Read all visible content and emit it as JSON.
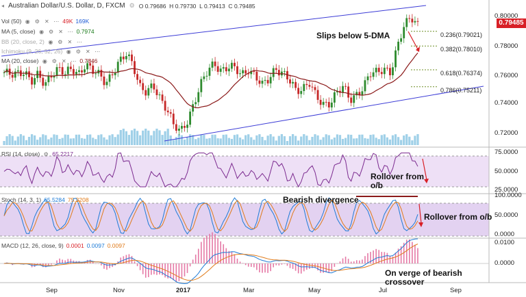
{
  "header": {
    "symbol_title": "Australian Dollar/U.S. Dollar, D, FXCM",
    "ohlc": {
      "o_label": "O",
      "o": "0.79686",
      "h_label": "H",
      "h": "0.79730",
      "l_label": "L",
      "l": "0.79413",
      "c_label": "C",
      "c": "0.79485"
    }
  },
  "indicators": [
    {
      "label": "Vol (50)",
      "v1": "49K",
      "v2": "169K",
      "c1": "#d81f26",
      "c2": "#1e5bd6"
    },
    {
      "label": "MA (5, close)",
      "v1": "0.7974",
      "v2": "",
      "c1": "#1a7a1a",
      "c2": ""
    },
    {
      "label": "BB (20, close, 2)",
      "v1": "",
      "v2": "",
      "c1": "",
      "c2": ""
    },
    {
      "label": "Ichimoku (9, 26, 52, 26)",
      "v1": "",
      "v2": "",
      "c1": "",
      "c2": ""
    },
    {
      "label": "MA (20, close)",
      "v1": "0.7846",
      "v2": "",
      "c1": "#8b1a1a",
      "c2": ""
    }
  ],
  "price": {
    "current": "0.79485",
    "y_ticks": [
      "0.80000",
      "0.78000",
      "0.76000",
      "0.74000",
      "0.72000"
    ],
    "fib": [
      {
        "label": "0.236(0.79021)",
        "level": 0.79021
      },
      {
        "label": "0.382(0.78010)",
        "level": 0.7801
      },
      {
        "label": "0.618(0.76374)",
        "level": 0.76374
      },
      {
        "label": "0.786(0.75211)",
        "level": 0.75211
      }
    ]
  },
  "rsi": {
    "label": "RSI (14, close)",
    "value": "65.2217",
    "y_ticks": [
      "75.0000",
      "50.0000",
      "25.0000"
    ]
  },
  "stoch": {
    "label": "Stoch (14, 3, 1)",
    "k": "65.5284",
    "d": "75.3208",
    "y_ticks": [
      "100.0000",
      "50.0000",
      "0.0000"
    ]
  },
  "macd": {
    "label": "MACD (12, 26, close, 9)",
    "hist": "0.0001",
    "macd": "0.0097",
    "signal": "0.0097",
    "y_ticks": [
      "0.0100",
      "0.0000"
    ]
  },
  "x_ticks": [
    "Sep",
    "Nov",
    "2017",
    "Mar",
    "May",
    "Jul",
    "Sep"
  ],
  "annotations": {
    "slips": "Slips below 5-DMA",
    "rsi_roll_1": "Rollover from",
    "rsi_roll_2": "o/b",
    "bearish_div": "Bearish divergence",
    "stoch_roll": "Rollover from o/b",
    "macd_1": "On verge of bearish",
    "macd_2": "crossover"
  },
  "colors": {
    "up": "#2e8b2e",
    "down": "#c62828",
    "ma20": "#8b1a1a",
    "trend": "#3b3bd6",
    "rsi": "#7b2a8f",
    "stoch_k": "#1e7bd6",
    "stoch_d": "#e07b1a",
    "band": "#e8d6f2",
    "vol": "#9fd0e8"
  },
  "chart_data": {
    "type": "candlestick",
    "series": [
      {
        "name": "AUD/USD close (approx)",
        "points": [
          [
            0,
            0.762
          ],
          [
            10,
            0.759
          ],
          [
            20,
            0.761
          ],
          [
            30,
            0.764
          ],
          [
            40,
            0.756
          ],
          [
            50,
            0.759
          ],
          [
            60,
            0.753
          ],
          [
            70,
            0.762
          ],
          [
            80,
            0.765
          ],
          [
            90,
            0.76
          ],
          [
            100,
            0.764
          ],
          [
            110,
            0.762
          ],
          [
            120,
            0.768
          ],
          [
            130,
            0.762
          ],
          [
            140,
            0.76
          ],
          [
            150,
            0.756
          ],
          [
            160,
            0.762
          ],
          [
            170,
            0.768
          ],
          [
            180,
            0.774
          ],
          [
            190,
            0.769
          ],
          [
            200,
            0.753
          ],
          [
            210,
            0.747
          ],
          [
            220,
            0.752
          ],
          [
            230,
            0.745
          ],
          [
            240,
            0.738
          ],
          [
            250,
            0.725
          ],
          [
            260,
            0.72
          ],
          [
            270,
            0.729
          ],
          [
            280,
            0.742
          ],
          [
            290,
            0.753
          ],
          [
            300,
            0.762
          ],
          [
            310,
            0.769
          ],
          [
            320,
            0.764
          ],
          [
            330,
            0.765
          ],
          [
            340,
            0.764
          ],
          [
            350,
            0.761
          ],
          [
            360,
            0.765
          ],
          [
            370,
            0.759
          ],
          [
            380,
            0.752
          ],
          [
            390,
            0.758
          ],
          [
            400,
            0.766
          ],
          [
            410,
            0.761
          ],
          [
            420,
            0.756
          ],
          [
            430,
            0.75
          ],
          [
            440,
            0.752
          ],
          [
            450,
            0.755
          ],
          [
            460,
            0.744
          ],
          [
            470,
            0.74
          ],
          [
            480,
            0.742
          ],
          [
            490,
            0.748
          ],
          [
            500,
            0.751
          ],
          [
            510,
            0.743
          ],
          [
            520,
            0.748
          ],
          [
            530,
            0.752
          ],
          [
            540,
            0.76
          ],
          [
            550,
            0.762
          ],
          [
            560,
            0.766
          ],
          [
            570,
            0.762
          ],
          [
            580,
            0.778
          ],
          [
            590,
            0.794
          ],
          [
            600,
            0.802
          ],
          [
            610,
            0.795
          ]
        ]
      }
    ]
  }
}
